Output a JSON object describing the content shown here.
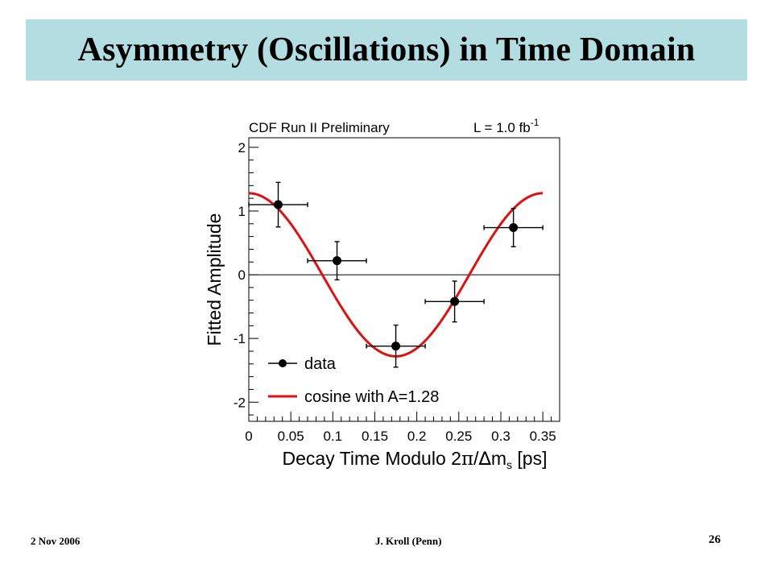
{
  "slide": {
    "title": "Asymmetry (Oscillations) in Time Domain",
    "footer_date": "2 Nov 2006",
    "footer_author": "J. Kroll (Penn)",
    "page_number": "26"
  },
  "colors": {
    "title_band": "#b3dde0",
    "fit_curve": "#dd1111",
    "data_points": "#000000"
  },
  "chart_data": {
    "type": "scatter",
    "header_left": "CDF Run II Preliminary",
    "header_right": "L = 1.0 fb",
    "header_right_sup": "-1",
    "xlabel_parts": [
      "Decay Time Modulo 2",
      "π",
      "/",
      "∆",
      "m",
      "s",
      " [ps]"
    ],
    "ylabel": "Fitted Amplitude",
    "xlim": [
      0,
      0.37
    ],
    "ylim": [
      -2.3,
      2.15
    ],
    "x_ticks": [
      0,
      0.05,
      0.1,
      0.15,
      0.2,
      0.25,
      0.3,
      0.35
    ],
    "x_tick_labels": [
      "0",
      "0.05",
      "0.1",
      "0.15",
      "0.2",
      "0.25",
      "0.3",
      "0.35"
    ],
    "y_ticks": [
      -2,
      -1,
      0,
      1,
      2
    ],
    "y_tick_labels": [
      "-2",
      "-1",
      "0",
      "1",
      "2"
    ],
    "zero_line": true,
    "series": [
      {
        "name": "data",
        "points": [
          {
            "x": 0.035,
            "y": 1.1,
            "xerr": 0.035,
            "yerr": 0.35
          },
          {
            "x": 0.105,
            "y": 0.22,
            "xerr": 0.035,
            "yerr": 0.3
          },
          {
            "x": 0.175,
            "y": -1.12,
            "xerr": 0.035,
            "yerr": 0.33
          },
          {
            "x": 0.245,
            "y": -0.42,
            "xerr": 0.035,
            "yerr": 0.32
          },
          {
            "x": 0.315,
            "y": 0.74,
            "xerr": 0.035,
            "yerr": 0.3
          }
        ]
      },
      {
        "name": "cosine with A=1.28",
        "amplitude": 1.28,
        "period": 0.35,
        "x_range": [
          0,
          0.35
        ]
      }
    ],
    "legend_placement": "bottom-left"
  }
}
